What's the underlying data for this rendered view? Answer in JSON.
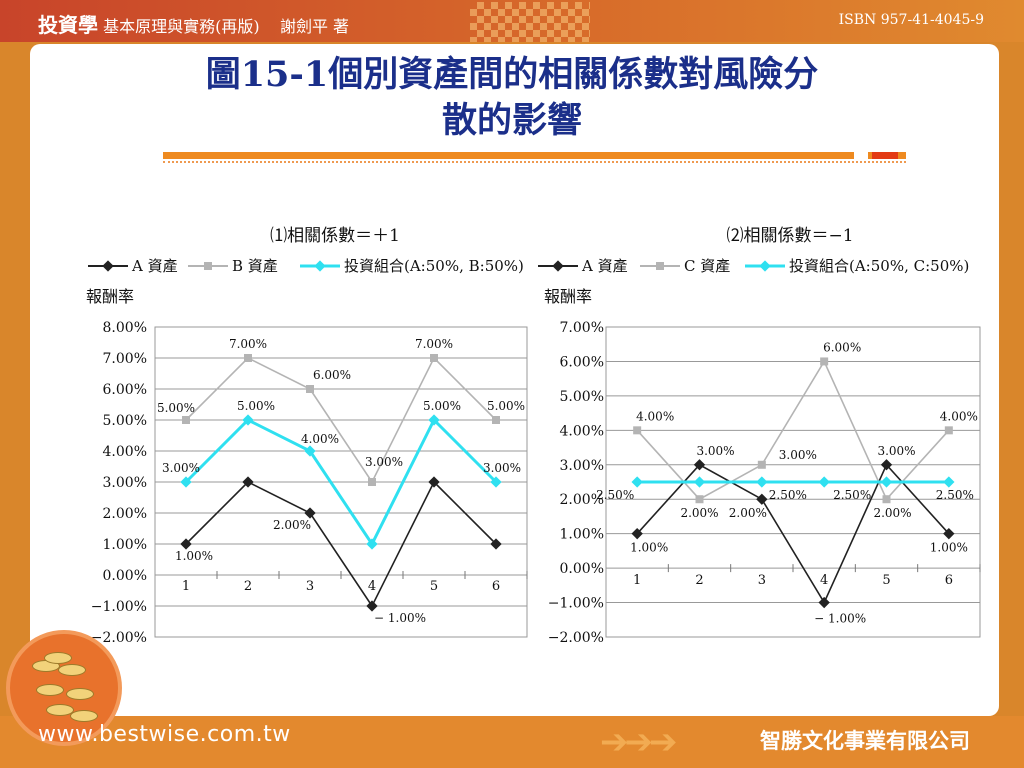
{
  "header": {
    "app_title": "投資學",
    "subtitle": "基本原理與實務(再版)",
    "author": "謝劍平 著",
    "isbn": "ISBN 957-41-4045-9"
  },
  "slide": {
    "title_line1": "圖15-1個別資產間的相關係數對風險分",
    "title_line2": "散的影響"
  },
  "footer": {
    "url": "www.bestwise.com.tw",
    "publisher": "智勝文化事業有限公司",
    "coins_icon": "coins-icon"
  },
  "colors": {
    "series_a": "#222222",
    "series_b": "#b4b4b4",
    "portfolio": "#2fe0f0",
    "title": "#1b2f8a",
    "accent": "#ee8a20"
  },
  "chart_data": [
    {
      "type": "line",
      "title": "⑴相關係數＝＋1",
      "ylabel": "報酬率",
      "xlabel": "",
      "categories": [
        "1",
        "2",
        "3",
        "4",
        "5",
        "6"
      ],
      "ylim": [
        -2,
        8
      ],
      "yticks": [
        "8.00%",
        "7.00%",
        "6.00%",
        "5.00%",
        "4.00%",
        "3.00%",
        "2.00%",
        "1.00%",
        "0.00%",
        "−1.00%",
        "−2.00%"
      ],
      "grid": true,
      "legend_position": "top",
      "series": [
        {
          "name": "A 資產",
          "values": [
            1,
            3,
            2,
            -1,
            3,
            1
          ],
          "labels": [
            "1.00%",
            "",
            "2.00%",
            "− 1.00%",
            "",
            ""
          ]
        },
        {
          "name": "B 資產",
          "values": [
            5,
            7,
            6,
            3,
            7,
            5
          ],
          "labels": [
            "5.00%",
            "7.00%",
            "6.00%",
            "3.00%",
            "7.00%",
            "5.00%"
          ]
        },
        {
          "name": "投資組合(A:50%, B:50%)",
          "values": [
            3,
            5,
            4,
            1,
            5,
            3
          ],
          "labels": [
            "3.00%",
            "5.00%",
            "4.00%",
            "",
            "5.00%",
            "3.00%"
          ]
        }
      ]
    },
    {
      "type": "line",
      "title": "⑵相關係數＝−1",
      "ylabel": "報酬率",
      "xlabel": "",
      "categories": [
        "1",
        "2",
        "3",
        "4",
        "5",
        "6"
      ],
      "ylim": [
        -2,
        7
      ],
      "yticks": [
        "7.00%",
        "6.00%",
        "5.00%",
        "4.00%",
        "3.00%",
        "2.00%",
        "1.00%",
        "0.00%",
        "−1.00%",
        "−2.00%"
      ],
      "grid": true,
      "legend_position": "top",
      "series": [
        {
          "name": "A 資產",
          "values": [
            1,
            3,
            2,
            -1,
            3,
            1
          ],
          "labels": [
            "1.00%",
            "3.00%",
            "2.00%",
            "− 1.00%",
            "3.00%",
            "1.00%"
          ]
        },
        {
          "name": "C 資產",
          "values": [
            4,
            2,
            3,
            6,
            2,
            4
          ],
          "labels": [
            "4.00%",
            "2.00%",
            "3.00%",
            "6.00%",
            "2.00%",
            "4.00%"
          ]
        },
        {
          "name": "投資組合(A:50%, C:50%)",
          "values": [
            2.5,
            2.5,
            2.5,
            2.5,
            2.5,
            2.5
          ],
          "labels": [
            "2.50%",
            "",
            "2.50%",
            "2.50%",
            "",
            "2.50%"
          ]
        }
      ]
    }
  ]
}
